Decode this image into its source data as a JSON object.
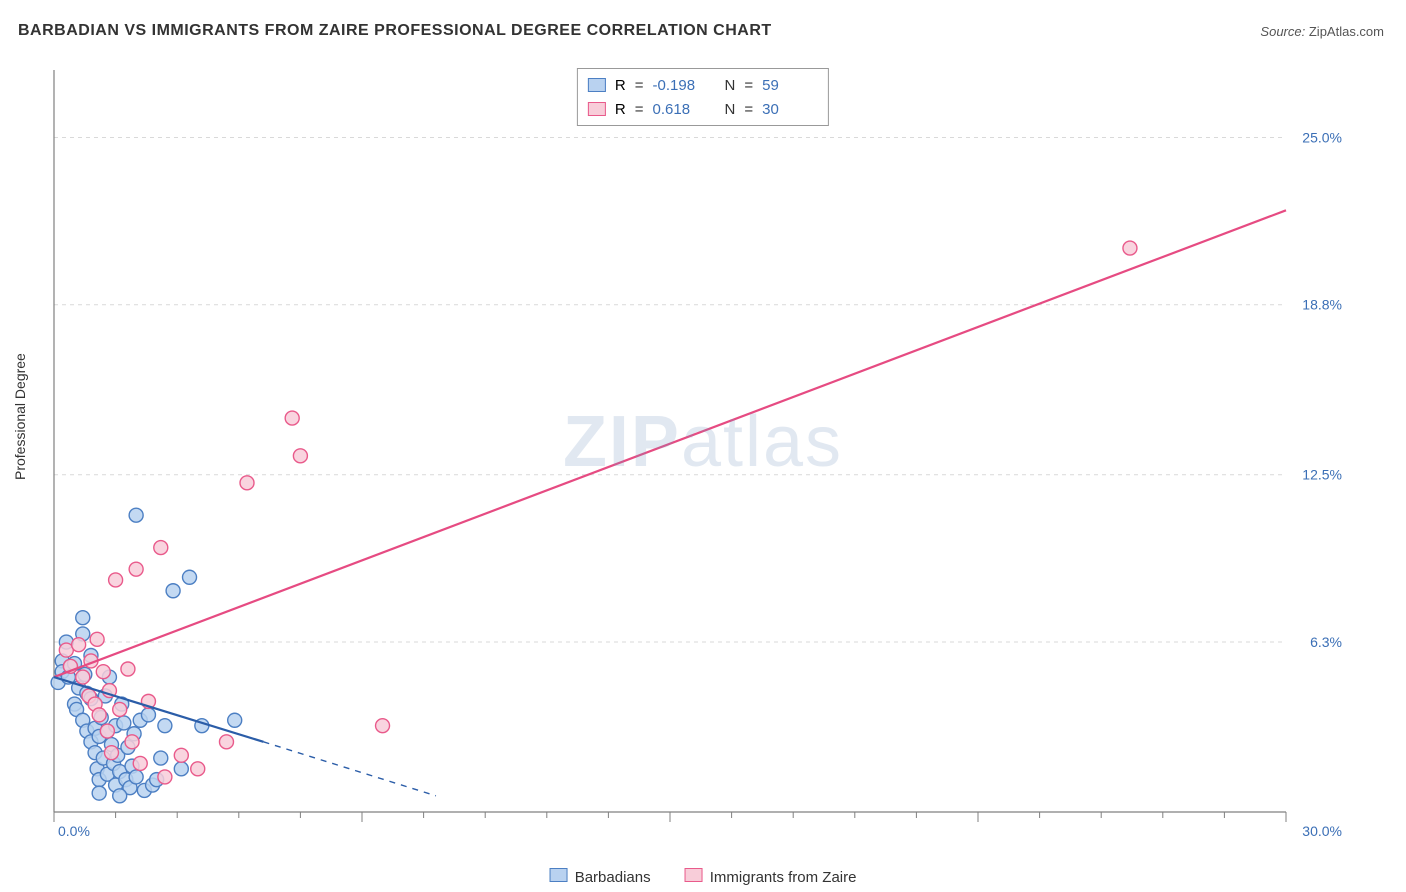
{
  "title": "BARBADIAN VS IMMIGRANTS FROM ZAIRE PROFESSIONAL DEGREE CORRELATION CHART",
  "source_label": "Source:",
  "source_value": "ZipAtlas.com",
  "ylabel": "Professional Degree",
  "watermark_a": "ZIP",
  "watermark_b": "atlas",
  "chart": {
    "type": "scatter-with-regression",
    "background_color": "#ffffff",
    "grid_color": "#d9d9d9",
    "axis_color": "#808080",
    "tick_label_color": "#3b6fb6",
    "label_fontsize": 14,
    "xlim": [
      0,
      30
    ],
    "ylim": [
      0,
      27.5
    ],
    "x_ticks_major": [
      0,
      7.5,
      15,
      22.5,
      30
    ],
    "x_ticklabels": [
      "0.0%",
      "",
      "",
      "",
      "30.0%"
    ],
    "x_minor_count_between": 4,
    "y_ticks": [
      0,
      6.3,
      12.5,
      18.8,
      25.0
    ],
    "y_ticklabels": [
      "",
      "6.3%",
      "12.5%",
      "18.8%",
      "25.0%"
    ],
    "marker_radius": 7,
    "marker_stroke_width": 1.4,
    "series": [
      {
        "name": "Barbadians",
        "fill": "#b9d2f0",
        "stroke": "#4c7fc3",
        "R": "-0.198",
        "N": "59",
        "regression": {
          "x1": 0,
          "y1": 5.0,
          "x2": 5.1,
          "y2": 2.6,
          "solid": true,
          "dash_extend_x": 9.3,
          "dash_extend_y": 0.6,
          "color": "#2b5da8",
          "width": 2.2
        },
        "points": [
          [
            0.2,
            5.6
          ],
          [
            0.2,
            5.2
          ],
          [
            0.3,
            6.3
          ],
          [
            0.1,
            4.8
          ],
          [
            0.4,
            5.4
          ],
          [
            0.35,
            5.0
          ],
          [
            0.5,
            5.5
          ],
          [
            0.5,
            4.0
          ],
          [
            0.6,
            4.6
          ],
          [
            0.55,
            3.8
          ],
          [
            0.7,
            3.4
          ],
          [
            0.7,
            6.6
          ],
          [
            0.75,
            5.1
          ],
          [
            0.8,
            4.4
          ],
          [
            0.8,
            3.0
          ],
          [
            0.9,
            2.6
          ],
          [
            0.9,
            4.2
          ],
          [
            0.9,
            5.8
          ],
          [
            1.0,
            3.1
          ],
          [
            1.0,
            2.2
          ],
          [
            1.05,
            1.6
          ],
          [
            1.1,
            1.2
          ],
          [
            1.1,
            2.8
          ],
          [
            1.15,
            3.5
          ],
          [
            1.2,
            2.0
          ],
          [
            1.25,
            4.3
          ],
          [
            1.3,
            1.4
          ],
          [
            1.3,
            3.0
          ],
          [
            1.35,
            5.0
          ],
          [
            1.4,
            2.5
          ],
          [
            1.45,
            1.8
          ],
          [
            1.5,
            1.0
          ],
          [
            1.5,
            3.2
          ],
          [
            1.55,
            2.1
          ],
          [
            1.6,
            1.5
          ],
          [
            1.65,
            4.0
          ],
          [
            1.7,
            3.3
          ],
          [
            1.75,
            1.2
          ],
          [
            1.8,
            2.4
          ],
          [
            1.85,
            0.9
          ],
          [
            1.9,
            1.7
          ],
          [
            1.95,
            2.9
          ],
          [
            2.0,
            1.3
          ],
          [
            2.1,
            3.4
          ],
          [
            2.2,
            0.8
          ],
          [
            2.3,
            3.6
          ],
          [
            2.4,
            1.0
          ],
          [
            2.5,
            1.2
          ],
          [
            2.6,
            2.0
          ],
          [
            2.7,
            3.2
          ],
          [
            2.9,
            8.2
          ],
          [
            3.1,
            1.6
          ],
          [
            3.3,
            8.7
          ],
          [
            3.6,
            3.2
          ],
          [
            2.0,
            11.0
          ],
          [
            0.7,
            7.2
          ],
          [
            4.4,
            3.4
          ],
          [
            1.1,
            0.7
          ],
          [
            1.6,
            0.6
          ]
        ]
      },
      {
        "name": "Immigrants from Zaire",
        "fill": "#f8cdd9",
        "stroke": "#e95a8b",
        "R": "0.618",
        "N": "30",
        "regression": {
          "x1": 0,
          "y1": 5.0,
          "x2": 30.0,
          "y2": 22.3,
          "solid": true,
          "color": "#e64b82",
          "width": 2.2
        },
        "points": [
          [
            0.3,
            6.0
          ],
          [
            0.4,
            5.4
          ],
          [
            0.6,
            6.2
          ],
          [
            0.7,
            5.0
          ],
          [
            0.85,
            4.3
          ],
          [
            0.9,
            5.6
          ],
          [
            1.0,
            4.0
          ],
          [
            1.05,
            6.4
          ],
          [
            1.1,
            3.6
          ],
          [
            1.2,
            5.2
          ],
          [
            1.3,
            3.0
          ],
          [
            1.35,
            4.5
          ],
          [
            1.4,
            2.2
          ],
          [
            1.5,
            8.6
          ],
          [
            1.6,
            3.8
          ],
          [
            1.8,
            5.3
          ],
          [
            1.9,
            2.6
          ],
          [
            2.0,
            9.0
          ],
          [
            2.1,
            1.8
          ],
          [
            2.3,
            4.1
          ],
          [
            2.6,
            9.8
          ],
          [
            2.7,
            1.3
          ],
          [
            3.1,
            2.1
          ],
          [
            3.5,
            1.6
          ],
          [
            4.2,
            2.6
          ],
          [
            4.7,
            12.2
          ],
          [
            5.8,
            14.6
          ],
          [
            6.0,
            13.2
          ],
          [
            8.0,
            3.2
          ],
          [
            26.2,
            20.9
          ]
        ]
      }
    ]
  },
  "stats_legend_label_R": "R",
  "stats_legend_label_N": "N",
  "bottom_legend": {
    "series1_label": "Barbadians",
    "series2_label": "Immigrants from Zaire"
  }
}
